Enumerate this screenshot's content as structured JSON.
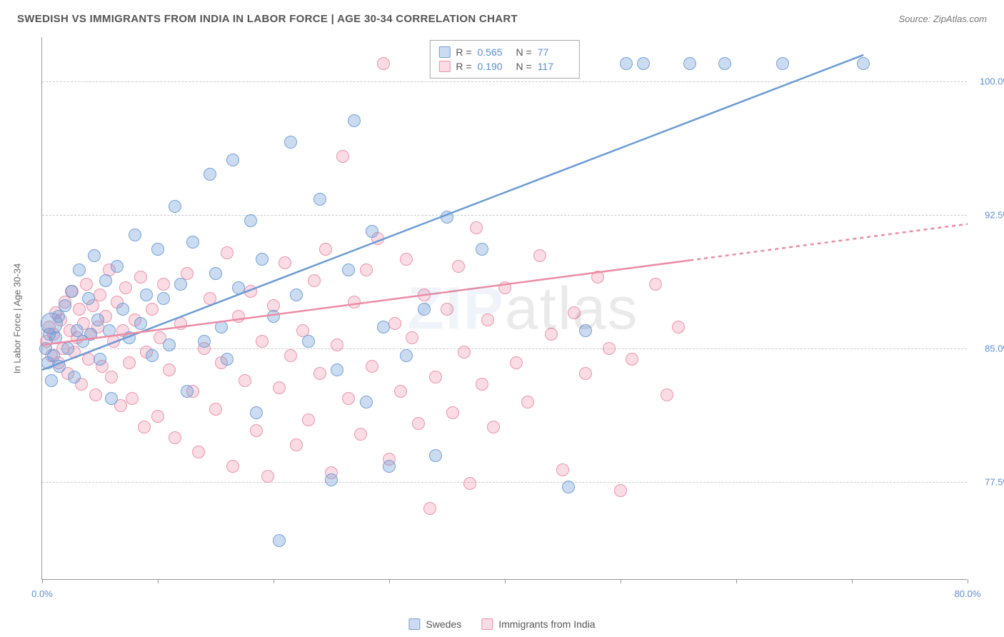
{
  "title": "SWEDISH VS IMMIGRANTS FROM INDIA IN LABOR FORCE | AGE 30-34 CORRELATION CHART",
  "source": "Source: ZipAtlas.com",
  "chart": {
    "type": "scatter",
    "background_color": "#ffffff",
    "grid_color": "#cccccc",
    "grid_dash": "4,4",
    "axis_color": "#999999",
    "xlim": [
      0,
      80
    ],
    "ylim": [
      72,
      102.5
    ],
    "x_ticks": [
      0,
      10,
      20,
      30,
      40,
      50,
      60,
      70,
      80
    ],
    "x_tick_labels": {
      "0": "0.0%",
      "80": "80.0%"
    },
    "y_ticks": [
      77.5,
      85.0,
      92.5,
      100.0
    ],
    "y_tick_labels": [
      "77.5%",
      "85.0%",
      "92.5%",
      "100.0%"
    ],
    "yaxis_title": "In Labor Force | Age 30-34",
    "label_fontsize": 13,
    "label_color": "#5b8dd6",
    "marker_radius": 9,
    "marker_opacity": 0.35,
    "line_width": 2.5,
    "watermark": {
      "text_strong": "ZIP",
      "text_light": "atlas",
      "opacity": 0.08,
      "fontsize": 84
    }
  },
  "correlation_legend": {
    "rows": [
      {
        "swatch": "a",
        "r_label": "R =",
        "r": "0.565",
        "n_label": "N =",
        "n": "77"
      },
      {
        "swatch": "b",
        "r_label": "R =",
        "r": "0.190",
        "n_label": "N =",
        "n": "117"
      }
    ]
  },
  "bottom_legend": {
    "items": [
      {
        "swatch": "a",
        "label": "Swedes"
      },
      {
        "swatch": "b",
        "label": "Immigrants from India"
      }
    ]
  },
  "series": {
    "a": {
      "name": "Swedes",
      "color_fill": "rgba(107,155,214,0.35)",
      "color_stroke": "#6b9bd6",
      "trend": {
        "x1": 0,
        "y1": 83.8,
        "x2": 71,
        "y2": 101.5,
        "dash_from_x": null
      },
      "points": [
        [
          0.3,
          85.0
        ],
        [
          0.5,
          84.2
        ],
        [
          0.6,
          85.8
        ],
        [
          0.8,
          83.2
        ],
        [
          0.8,
          86.4,
          "lg"
        ],
        [
          1.0,
          84.6
        ],
        [
          1.2,
          85.6
        ],
        [
          1.4,
          86.8
        ],
        [
          1.5,
          84.0
        ],
        [
          2.0,
          87.4
        ],
        [
          2.2,
          85.0
        ],
        [
          2.5,
          88.2
        ],
        [
          2.8,
          83.4
        ],
        [
          3.0,
          86.0
        ],
        [
          3.2,
          89.4
        ],
        [
          3.5,
          85.4
        ],
        [
          4.0,
          87.8
        ],
        [
          4.2,
          85.8
        ],
        [
          4.5,
          90.2
        ],
        [
          4.8,
          86.6
        ],
        [
          5.0,
          84.4
        ],
        [
          5.5,
          88.8
        ],
        [
          5.8,
          86.0
        ],
        [
          6.0,
          82.2
        ],
        [
          6.5,
          89.6
        ],
        [
          7.0,
          87.2
        ],
        [
          7.5,
          85.6
        ],
        [
          8.0,
          91.4
        ],
        [
          8.5,
          86.4
        ],
        [
          9.0,
          88.0
        ],
        [
          9.5,
          84.6
        ],
        [
          10.0,
          90.6
        ],
        [
          10.5,
          87.8
        ],
        [
          11.0,
          85.2
        ],
        [
          11.5,
          93.0
        ],
        [
          12.0,
          88.6
        ],
        [
          12.5,
          82.6
        ],
        [
          13.0,
          91.0
        ],
        [
          14.0,
          85.4
        ],
        [
          14.5,
          94.8
        ],
        [
          15.0,
          89.2
        ],
        [
          15.5,
          86.2
        ],
        [
          16.0,
          84.4
        ],
        [
          16.5,
          95.6
        ],
        [
          17.0,
          88.4
        ],
        [
          18.0,
          92.2
        ],
        [
          18.5,
          81.4
        ],
        [
          19.0,
          90.0
        ],
        [
          20.0,
          86.8
        ],
        [
          20.5,
          74.2
        ],
        [
          21.5,
          96.6
        ],
        [
          22.0,
          88.0
        ],
        [
          23.0,
          85.4
        ],
        [
          24.0,
          93.4
        ],
        [
          25.0,
          77.6
        ],
        [
          25.5,
          83.8
        ],
        [
          26.5,
          89.4
        ],
        [
          27.0,
          97.8
        ],
        [
          28.0,
          82.0
        ],
        [
          28.5,
          91.6
        ],
        [
          29.5,
          86.2
        ],
        [
          30.0,
          78.4
        ],
        [
          31.5,
          84.6
        ],
        [
          33.0,
          87.2
        ],
        [
          34.0,
          79.0
        ],
        [
          35.0,
          92.4
        ],
        [
          36.0,
          101.0
        ],
        [
          38.0,
          90.6
        ],
        [
          38.5,
          101.0
        ],
        [
          40.0,
          101.0
        ],
        [
          41.0,
          101.0
        ],
        [
          43.0,
          101.0
        ],
        [
          45.5,
          77.2
        ],
        [
          47.0,
          86.0
        ],
        [
          50.5,
          101.0
        ],
        [
          52.0,
          101.0
        ],
        [
          56.0,
          101.0
        ],
        [
          59.0,
          101.0
        ],
        [
          64.0,
          101.0
        ],
        [
          71.0,
          101.0
        ]
      ]
    },
    "b": {
      "name": "Immigrants from India",
      "color_fill": "rgba(235,140,165,0.30)",
      "color_stroke": "#eb8ca5",
      "trend": {
        "x1": 0,
        "y1": 85.2,
        "x2": 80,
        "y2": 92.0,
        "dash_from_x": 56
      },
      "points": [
        [
          0.4,
          85.4
        ],
        [
          0.6,
          86.2
        ],
        [
          0.8,
          84.6
        ],
        [
          1.0,
          85.8
        ],
        [
          1.2,
          87.0
        ],
        [
          1.4,
          84.2
        ],
        [
          1.6,
          86.6
        ],
        [
          1.8,
          85.0
        ],
        [
          2.0,
          87.6
        ],
        [
          2.2,
          83.6
        ],
        [
          2.4,
          86.0
        ],
        [
          2.6,
          88.2
        ],
        [
          2.8,
          84.8
        ],
        [
          3.0,
          85.6
        ],
        [
          3.2,
          87.2
        ],
        [
          3.4,
          83.0
        ],
        [
          3.6,
          86.4
        ],
        [
          3.8,
          88.6
        ],
        [
          4.0,
          84.4
        ],
        [
          4.2,
          85.8
        ],
        [
          4.4,
          87.4
        ],
        [
          4.6,
          82.4
        ],
        [
          4.8,
          86.2
        ],
        [
          5.0,
          88.0
        ],
        [
          5.2,
          84.0
        ],
        [
          5.5,
          86.8
        ],
        [
          5.8,
          89.4
        ],
        [
          6.0,
          83.4
        ],
        [
          6.2,
          85.4
        ],
        [
          6.5,
          87.6
        ],
        [
          6.8,
          81.8
        ],
        [
          7.0,
          86.0
        ],
        [
          7.2,
          88.4
        ],
        [
          7.5,
          84.2
        ],
        [
          7.8,
          82.2
        ],
        [
          8.0,
          86.6
        ],
        [
          8.5,
          89.0
        ],
        [
          8.8,
          80.6
        ],
        [
          9.0,
          84.8
        ],
        [
          9.5,
          87.2
        ],
        [
          10.0,
          81.2
        ],
        [
          10.2,
          85.6
        ],
        [
          10.5,
          88.6
        ],
        [
          11.0,
          83.8
        ],
        [
          11.5,
          80.0
        ],
        [
          12.0,
          86.4
        ],
        [
          12.5,
          89.2
        ],
        [
          13.0,
          82.6
        ],
        [
          13.5,
          79.2
        ],
        [
          14.0,
          85.0
        ],
        [
          14.5,
          87.8
        ],
        [
          15.0,
          81.6
        ],
        [
          15.5,
          84.2
        ],
        [
          16.0,
          90.4
        ],
        [
          16.5,
          78.4
        ],
        [
          17.0,
          86.8
        ],
        [
          17.5,
          83.2
        ],
        [
          18.0,
          88.2
        ],
        [
          18.5,
          80.4
        ],
        [
          19.0,
          85.4
        ],
        [
          19.5,
          77.8
        ],
        [
          20.0,
          87.4
        ],
        [
          20.5,
          82.8
        ],
        [
          21.0,
          89.8
        ],
        [
          21.5,
          84.6
        ],
        [
          22.0,
          79.6
        ],
        [
          22.5,
          86.0
        ],
        [
          23.0,
          81.0
        ],
        [
          23.5,
          88.8
        ],
        [
          24.0,
          83.6
        ],
        [
          24.5,
          90.6
        ],
        [
          25.0,
          78.0
        ],
        [
          25.5,
          85.2
        ],
        [
          26.0,
          95.8
        ],
        [
          26.5,
          82.2
        ],
        [
          27.0,
          87.6
        ],
        [
          27.5,
          80.2
        ],
        [
          28.0,
          89.4
        ],
        [
          28.5,
          84.0
        ],
        [
          29.0,
          91.2
        ],
        [
          29.5,
          101.0
        ],
        [
          30.0,
          78.8
        ],
        [
          30.5,
          86.4
        ],
        [
          31.0,
          82.6
        ],
        [
          31.5,
          90.0
        ],
        [
          32.0,
          85.6
        ],
        [
          32.5,
          80.8
        ],
        [
          33.0,
          88.0
        ],
        [
          33.5,
          76.0
        ],
        [
          34.0,
          83.4
        ],
        [
          34.5,
          101.0
        ],
        [
          35.0,
          87.2
        ],
        [
          35.5,
          81.4
        ],
        [
          36.0,
          89.6
        ],
        [
          36.5,
          84.8
        ],
        [
          37.0,
          77.4
        ],
        [
          37.5,
          91.8
        ],
        [
          38.0,
          83.0
        ],
        [
          38.5,
          86.6
        ],
        [
          39.0,
          80.6
        ],
        [
          40.0,
          88.4
        ],
        [
          40.5,
          101.0
        ],
        [
          41.0,
          84.2
        ],
        [
          42.0,
          82.0
        ],
        [
          43.0,
          90.2
        ],
        [
          44.0,
          85.8
        ],
        [
          45.0,
          78.2
        ],
        [
          46.0,
          87.0
        ],
        [
          47.0,
          83.6
        ],
        [
          48.0,
          89.0
        ],
        [
          49.0,
          85.0
        ],
        [
          50.0,
          77.0
        ],
        [
          51.0,
          84.4
        ],
        [
          53.0,
          88.6
        ],
        [
          54.0,
          82.4
        ],
        [
          55.0,
          86.2
        ]
      ]
    }
  }
}
